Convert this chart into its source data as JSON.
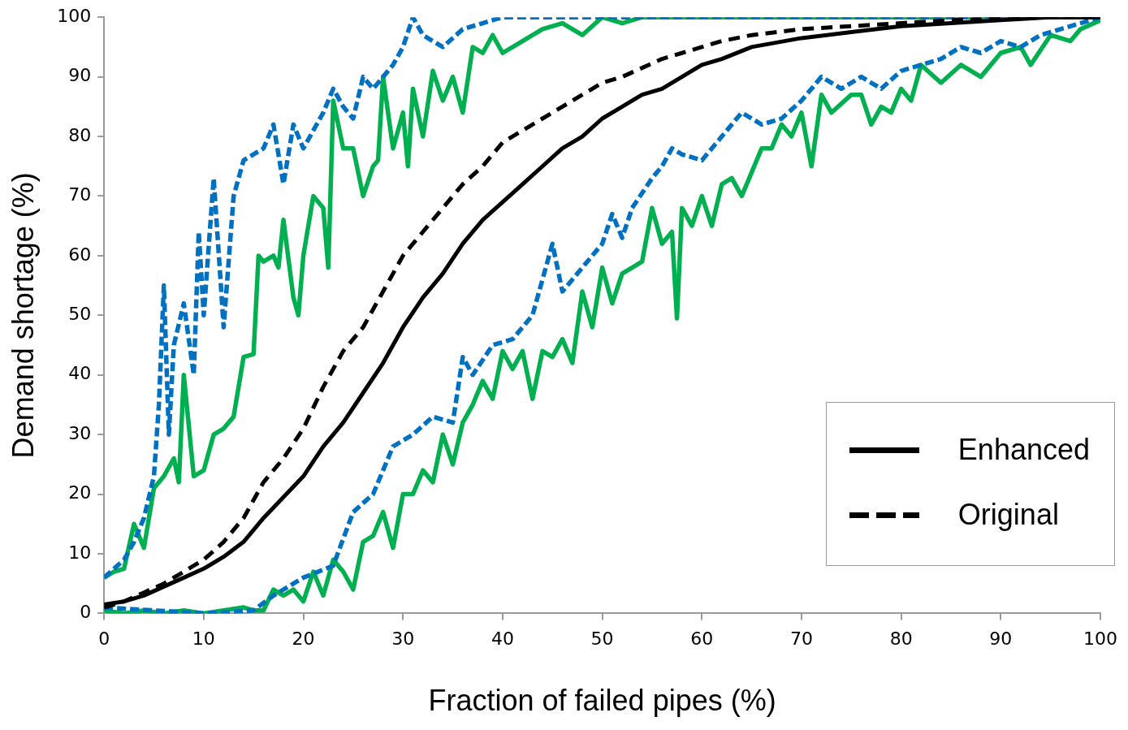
{
  "chart_data": {
    "type": "line",
    "xlabel": "Fraction of failed pipes (%)",
    "ylabel": "Demand shortage (%)",
    "xlim": [
      0,
      100
    ],
    "xticks": [
      0,
      10,
      20,
      30,
      40,
      50,
      60,
      70,
      80,
      90,
      100
    ],
    "ylim": [
      0,
      100
    ],
    "yticks": [
      0,
      10,
      20,
      30,
      40,
      50,
      60,
      70,
      80,
      90,
      100
    ],
    "grid": false,
    "legend": "bottom right",
    "marker": "none",
    "series": [
      {
        "name": "Enhanced",
        "color": "#000000",
        "line_style": "solid",
        "x": [
          0,
          2,
          4,
          6,
          8,
          10,
          12,
          14,
          16,
          18,
          20,
          22,
          24,
          26,
          28,
          30,
          32,
          34,
          36,
          38,
          40,
          42,
          44,
          46,
          48,
          50,
          52,
          54,
          56,
          58,
          60,
          62,
          65,
          70,
          75,
          80,
          85,
          90,
          95,
          100
        ],
        "values": [
          1.5,
          2,
          3,
          4.5,
          6,
          7.5,
          9.5,
          12,
          16,
          19.5,
          23,
          28,
          32,
          37,
          42,
          48,
          53,
          57,
          62,
          66,
          69,
          72,
          75,
          78,
          80,
          83,
          85,
          87,
          88,
          90,
          92,
          93,
          95,
          96.5,
          97.5,
          98.5,
          99,
          99.5,
          100,
          100
        ]
      },
      {
        "name": "Original",
        "color": "#000000",
        "line_style": "dashed",
        "x": [
          0,
          2,
          4,
          6,
          8,
          10,
          12,
          14,
          16,
          18,
          20,
          22,
          24,
          26,
          28,
          30,
          32,
          34,
          36,
          38,
          40,
          42,
          44,
          46,
          48,
          50,
          52,
          54,
          56,
          58,
          60,
          62,
          65,
          70,
          75,
          80,
          85,
          90,
          95,
          100
        ],
        "values": [
          1,
          2,
          3.5,
          5,
          7,
          9,
          12,
          16,
          22,
          26,
          31,
          38,
          44,
          48,
          54,
          60,
          64,
          68,
          72,
          75,
          79,
          81,
          83,
          85,
          87,
          89,
          90,
          91.5,
          93,
          94,
          95,
          96,
          97,
          98,
          98.5,
          99,
          99.5,
          99.7,
          100,
          100
        ]
      },
      {
        "color": "#0070c0",
        "line_style": "dashed",
        "x": [
          0,
          2,
          3,
          4,
          5,
          5.5,
          6,
          6.5,
          7,
          8,
          9,
          9.5,
          10,
          11,
          12,
          13,
          14,
          16,
          17,
          18,
          19,
          20,
          22,
          23,
          24,
          25,
          26,
          27,
          28,
          29,
          30,
          31,
          32,
          34,
          36,
          38,
          40,
          45,
          50,
          60,
          70,
          80,
          90,
          100
        ],
        "values": [
          6,
          9,
          12,
          16,
          23,
          35,
          55,
          30,
          45,
          52,
          40,
          64,
          50,
          73,
          48,
          70,
          76,
          78,
          82,
          72,
          82,
          78,
          84,
          88,
          85,
          83,
          90,
          88,
          90,
          92,
          95,
          100,
          97,
          95,
          98,
          99,
          100,
          100,
          100,
          100,
          100,
          100,
          100,
          100
        ]
      },
      {
        "color": "#00b050",
        "line_style": "solid",
        "x": [
          0,
          1,
          2,
          3,
          4,
          5,
          6,
          7,
          7.5,
          8,
          9,
          10,
          11,
          12,
          13,
          14,
          15,
          15.5,
          16,
          17,
          17.5,
          18,
          19,
          19.5,
          20,
          21,
          22,
          22.5,
          23,
          24,
          25,
          26,
          27,
          27.5,
          28,
          29,
          30,
          30.5,
          31,
          32,
          33,
          34,
          35,
          36,
          37,
          38,
          39,
          40,
          42,
          44,
          46,
          48,
          50,
          52,
          54,
          60,
          70,
          80,
          90,
          100
        ],
        "values": [
          6,
          7,
          7.5,
          15,
          11,
          21,
          23,
          26,
          22,
          40,
          23,
          24,
          30,
          31,
          33,
          43,
          43.5,
          60,
          59,
          60,
          58,
          66,
          53,
          50,
          60,
          70,
          68,
          58,
          86,
          78,
          78,
          70,
          75,
          76,
          90,
          78,
          84,
          75,
          88,
          80,
          91,
          86,
          90,
          84,
          95,
          94,
          97,
          94,
          96,
          98,
          99,
          97,
          100,
          99,
          100,
          100,
          100,
          100,
          100,
          100
        ]
      },
      {
        "color": "#0070c0",
        "line_style": "dashed",
        "x": [
          0,
          10,
          15,
          17,
          20,
          23,
          25,
          27,
          29,
          31,
          33,
          35,
          36,
          37,
          39,
          41,
          43,
          45,
          46,
          48,
          50,
          51,
          52,
          53,
          55,
          56,
          57,
          58,
          60,
          62,
          64,
          66,
          68,
          70,
          72,
          74,
          76,
          78,
          80,
          82,
          84,
          86,
          88,
          90,
          92,
          94,
          96,
          98,
          100
        ],
        "values": [
          1,
          0,
          0.5,
          3,
          6,
          8,
          17,
          20,
          28,
          30,
          33,
          32,
          43,
          40,
          45,
          46,
          50,
          62,
          54,
          58,
          62,
          67,
          63,
          68,
          73,
          75,
          78,
          77,
          76,
          80,
          84,
          82,
          83,
          86,
          90,
          88,
          90,
          88,
          91,
          92,
          93,
          95,
          94,
          96,
          95,
          97,
          98,
          99,
          100
        ]
      },
      {
        "color": "#00b050",
        "line_style": "solid",
        "x": [
          0,
          2,
          4,
          6,
          8,
          10,
          12,
          14,
          15,
          16,
          17,
          18,
          19,
          20,
          21,
          22,
          23,
          24,
          25,
          26,
          27,
          28,
          29,
          30,
          31,
          32,
          33,
          34,
          35,
          36,
          37,
          38,
          39,
          40,
          41,
          42,
          43,
          44,
          45,
          46,
          47,
          48,
          49,
          50,
          51,
          52,
          53,
          54,
          55,
          56,
          57,
          57.5,
          58,
          59,
          60,
          61,
          62,
          63,
          64,
          65,
          66,
          67,
          68,
          69,
          70,
          71,
          72,
          73,
          75,
          76,
          77,
          78,
          79,
          80,
          81,
          82,
          84,
          86,
          88,
          90,
          92,
          93,
          95,
          97,
          98,
          100
        ],
        "values": [
          0.5,
          0,
          0.5,
          0,
          0.5,
          0,
          0.5,
          1,
          0.5,
          0.5,
          4,
          3,
          4,
          2,
          7,
          3,
          9,
          7,
          4,
          12,
          13,
          17,
          11,
          20,
          20,
          24,
          22,
          30,
          25,
          32,
          35,
          39,
          36,
          44,
          41,
          44,
          36,
          44,
          43,
          46,
          42,
          54,
          48,
          58,
          52,
          57,
          58,
          59,
          68,
          62,
          64,
          49.5,
          68,
          65,
          70,
          65,
          72,
          73,
          70,
          74,
          78,
          78,
          82,
          80,
          84,
          75,
          87,
          84,
          87,
          87,
          82,
          85,
          84,
          88,
          86,
          92,
          89,
          92,
          90,
          94,
          95,
          92,
          97,
          96,
          98,
          99.5
        ]
      }
    ]
  }
}
